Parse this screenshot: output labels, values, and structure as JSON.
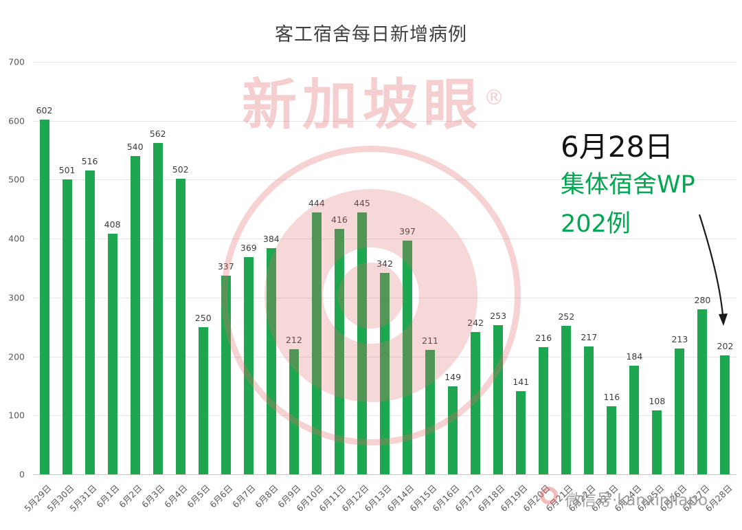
{
  "title": "客工宿舍每日新增病例",
  "annotation": {
    "date": "6月28日",
    "line2": "集体宿舍WP",
    "line3": "202例"
  },
  "watermark": {
    "brand": "新加坡眼",
    "registered": "®",
    "wechat": "微信号·kanxinjiapo"
  },
  "colors": {
    "bar": "#1fa650",
    "annotation_green": "#00a651",
    "watermark_red": "#e06a6a"
  },
  "chart_data": {
    "type": "bar",
    "title": "客工宿舍每日新增病例",
    "categories": [
      "5月29日",
      "5月30日",
      "5月31日",
      "6月1日",
      "6月2日",
      "6月3日",
      "6月4日",
      "6月5日",
      "6月6日",
      "6月7日",
      "6月8日",
      "6月9日",
      "6月10日",
      "6月11日",
      "6月12日",
      "6月13日",
      "6月14日",
      "6月15日",
      "6月16日",
      "6月17日",
      "6月18日",
      "6月19日",
      "6月20日",
      "6月21日",
      "6月22日",
      "6月23日",
      "6月24日",
      "6月25日",
      "6月26日",
      "6月27日",
      "6月28日"
    ],
    "values": [
      602,
      501,
      516,
      408,
      540,
      562,
      502,
      250,
      337,
      369,
      384,
      212,
      444,
      416,
      445,
      342,
      397,
      211,
      149,
      242,
      253,
      141,
      216,
      252,
      217,
      116,
      184,
      108,
      213,
      280,
      202
    ],
    "xlabel": "",
    "ylabel": "",
    "ylim": [
      0,
      700
    ],
    "yticks": [
      0,
      100,
      200,
      300,
      400,
      500,
      600,
      700
    ],
    "grid": true,
    "legend": false,
    "bar_color": "#1fa650",
    "data_labels": true,
    "annotation": {
      "target_category": "6月28日",
      "target_value": 202,
      "text_lines": [
        "6月28日",
        "集体宿舍WP",
        "202例"
      ]
    }
  }
}
